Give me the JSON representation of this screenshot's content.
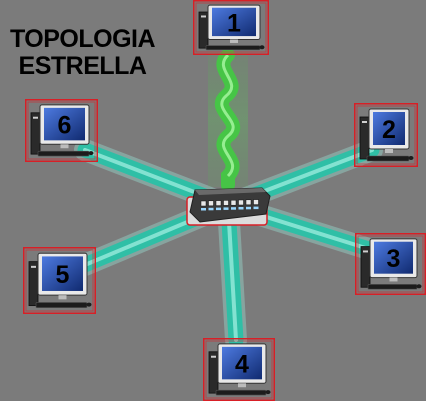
{
  "title": {
    "line1": "TOPOLOGIA",
    "line2": "ESTRELLA"
  },
  "colors": {
    "background": "#7b7b7b",
    "cable": "#2fbfa6",
    "cable_glow": "#9ff0e2",
    "signal": "#3ecf3e",
    "frame": "#d81f26",
    "screen": "#1c3f9a"
  },
  "hub": {
    "icon": "network-switch-icon",
    "ports": 8
  },
  "computers": [
    {
      "id": 1,
      "label": "1",
      "icon": "computer-icon"
    },
    {
      "id": 2,
      "label": "2",
      "icon": "computer-icon"
    },
    {
      "id": 3,
      "label": "3",
      "icon": "computer-icon"
    },
    {
      "id": 4,
      "label": "4",
      "icon": "computer-icon"
    },
    {
      "id": 5,
      "label": "5",
      "icon": "computer-icon"
    },
    {
      "id": 6,
      "label": "6",
      "icon": "computer-icon"
    }
  ]
}
